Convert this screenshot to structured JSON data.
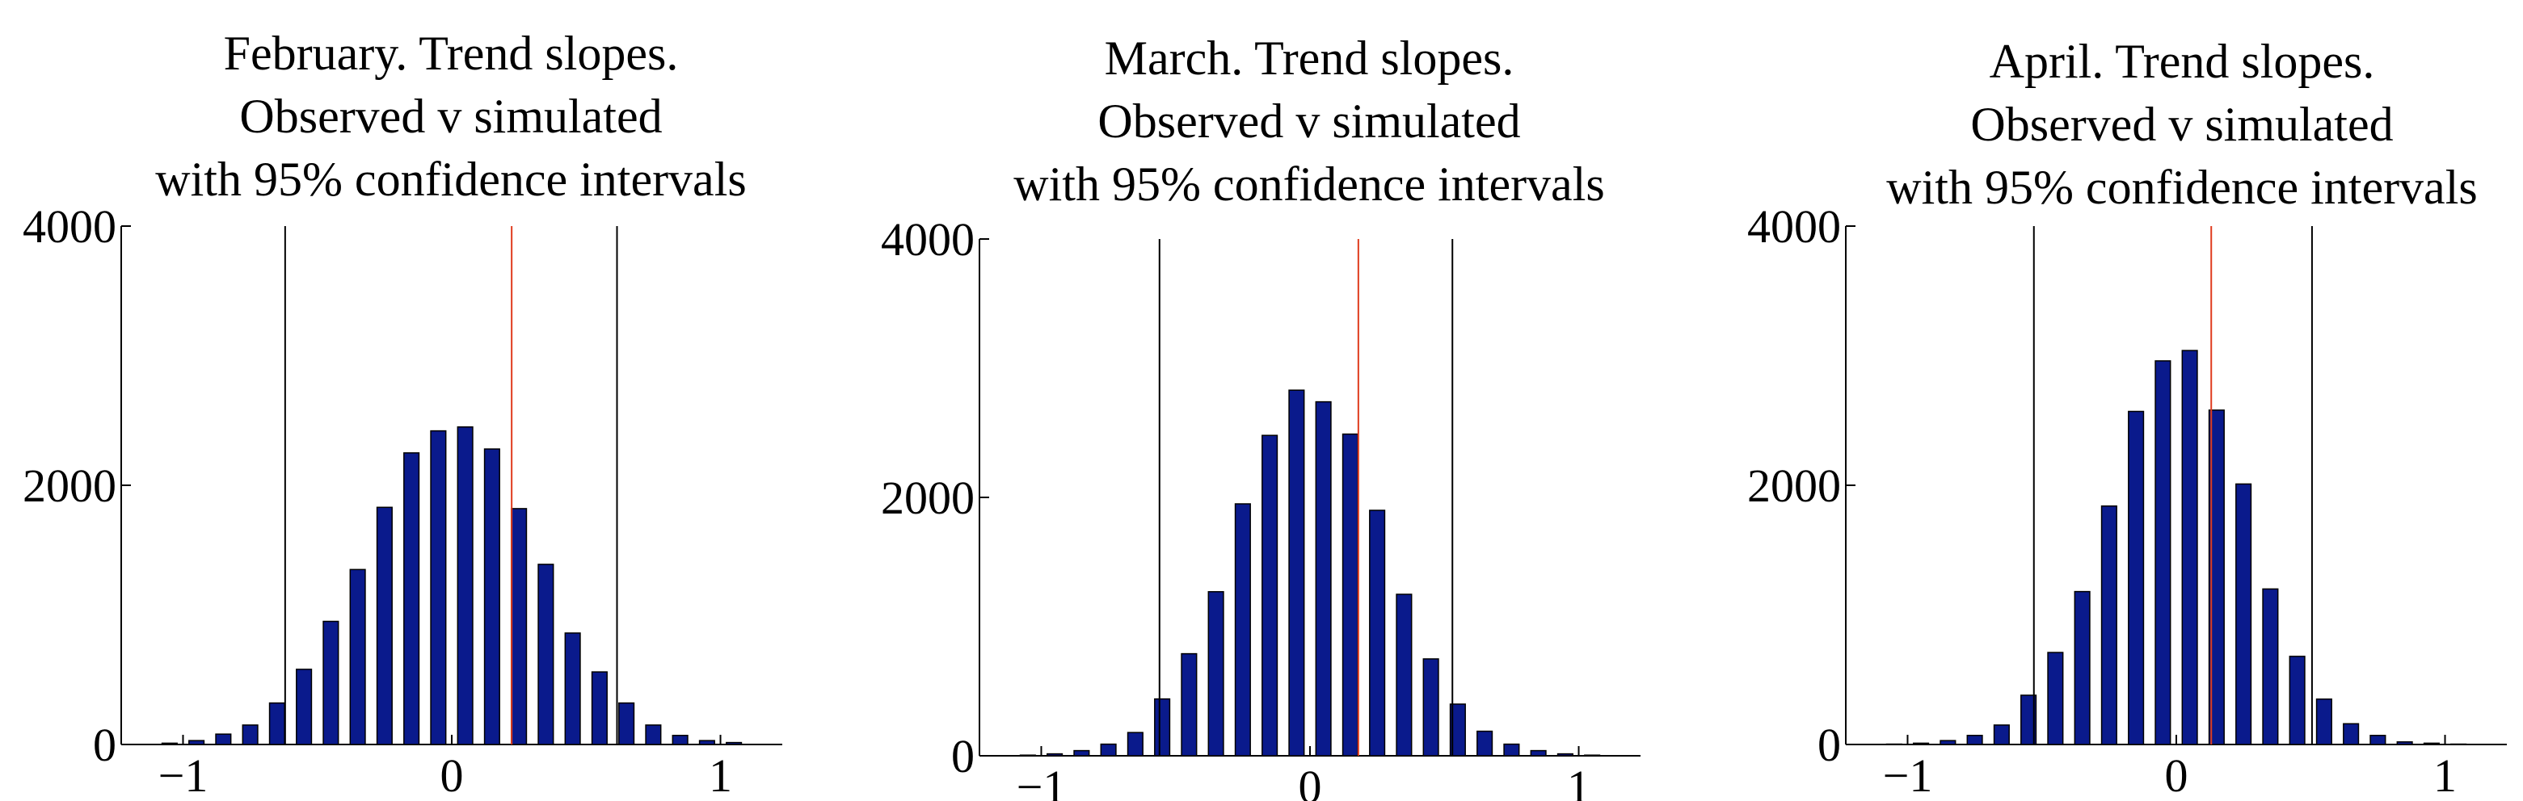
{
  "chart_data": [
    {
      "type": "histogram",
      "title": [
        "February. Trend slopes.",
        "Observed v simulated",
        "with 95% confidence intervals"
      ],
      "bins": [
        -1.1,
        -1.0,
        -0.9,
        -0.8,
        -0.7,
        -0.6,
        -0.5,
        -0.4,
        -0.3,
        -0.2,
        -0.1,
        0,
        0.1,
        0.2,
        0.3,
        0.4,
        0.5,
        0.6,
        0.7,
        0.8,
        0.9,
        1.0,
        1.1
      ],
      "values": [
        10,
        30,
        80,
        150,
        320,
        580,
        950,
        1350,
        1830,
        2250,
        2420,
        2450,
        2280,
        1820,
        1390,
        860,
        560,
        320,
        150,
        70,
        30,
        15
      ],
      "color": "#0a1a8c",
      "vlines": [
        {
          "value": -0.62,
          "color": "#000000"
        },
        {
          "value": 0.615,
          "color": "#000000"
        },
        {
          "value": 0.223,
          "color": "#e03c1e"
        }
      ],
      "xlim": [
        -1.23,
        1.23
      ],
      "ylim": [
        0,
        4000
      ],
      "xticks": [
        {
          "value": -1,
          "label": "−1"
        },
        0,
        1
      ],
      "yticks": [
        0,
        2000,
        4000
      ]
    },
    {
      "type": "histogram",
      "title": [
        "March. Trend slopes.",
        "Observed v simulated",
        "with 95% confidence intervals"
      ],
      "bins": [
        -1.1,
        -1.0,
        -0.9,
        -0.8,
        -0.7,
        -0.6,
        -0.5,
        -0.4,
        -0.3,
        -0.2,
        -0.1,
        0,
        0.1,
        0.2,
        0.3,
        0.4,
        0.5,
        0.6,
        0.7,
        0.8,
        0.9,
        1.0,
        1.1
      ],
      "values": [
        5,
        15,
        40,
        90,
        180,
        440,
        790,
        1270,
        1950,
        2480,
        2830,
        2740,
        2490,
        1900,
        1250,
        750,
        400,
        190,
        90,
        40,
        15,
        5
      ],
      "color": "#0a1a8c",
      "vlines": [
        {
          "value": -0.56,
          "color": "#000000"
        },
        {
          "value": 0.53,
          "color": "#000000"
        },
        {
          "value": 0.18,
          "color": "#e03c1e"
        }
      ],
      "xlim": [
        -1.23,
        1.23
      ],
      "ylim": [
        0,
        4000
      ],
      "xticks": [
        {
          "value": -1,
          "label": "−1"
        },
        0,
        1
      ],
      "yticks": [
        0,
        2000,
        4000
      ]
    },
    {
      "type": "histogram",
      "title": [
        "April. Trend slopes.",
        "Observed v simulated",
        "with 95% confidence intervals"
      ],
      "bins": [
        -1.1,
        -1.0,
        -0.9,
        -0.8,
        -0.7,
        -0.6,
        -0.5,
        -0.4,
        -0.3,
        -0.2,
        -0.1,
        0,
        0.1,
        0.2,
        0.3,
        0.4,
        0.5,
        0.6,
        0.7,
        0.8,
        0.9,
        1.0,
        1.1
      ],
      "values": [
        3,
        10,
        30,
        70,
        150,
        380,
        710,
        1180,
        1840,
        2570,
        2960,
        3040,
        2580,
        2010,
        1200,
        680,
        350,
        160,
        70,
        20,
        10,
        3
      ],
      "color": "#0a1a8c",
      "vlines": [
        {
          "value": -0.53,
          "color": "#000000"
        },
        {
          "value": 0.505,
          "color": "#000000"
        },
        {
          "value": 0.13,
          "color": "#e03c1e"
        }
      ],
      "xlim": [
        -1.23,
        1.23
      ],
      "ylim": [
        0,
        4000
      ],
      "xticks": [
        {
          "value": -1,
          "label": "−1"
        },
        0,
        1
      ],
      "yticks": [
        0,
        2000,
        4000
      ]
    }
  ]
}
